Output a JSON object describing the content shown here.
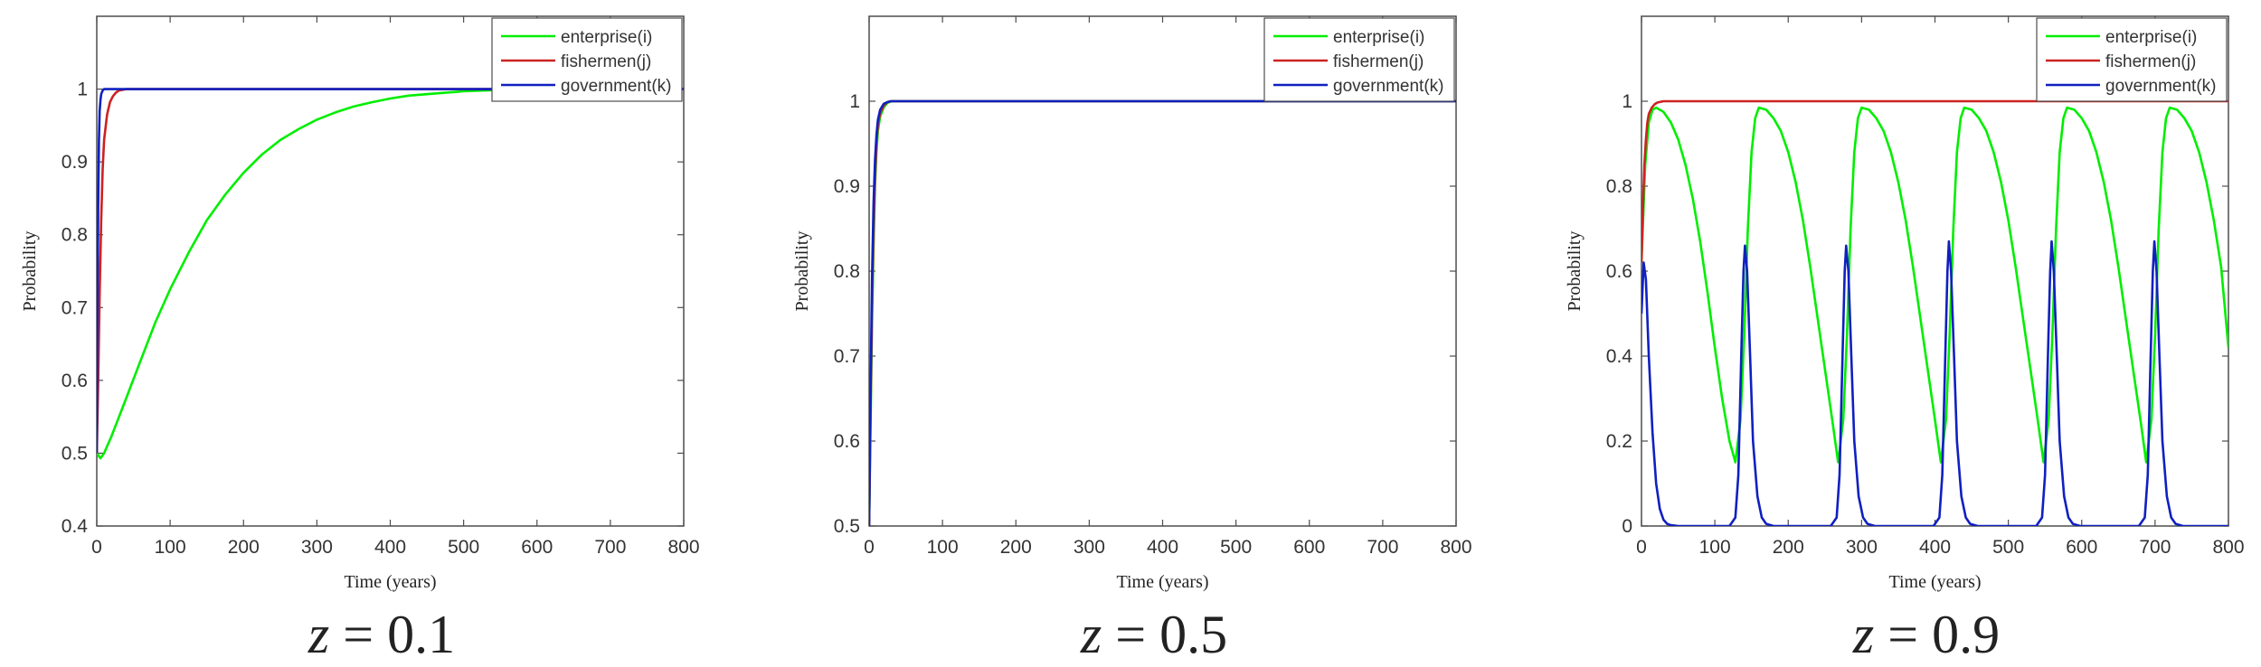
{
  "chart_data": [
    {
      "type": "line",
      "caption": "z = 0.1",
      "xlabel": "Time (years)",
      "ylabel": "Probability",
      "xlim": [
        0,
        800
      ],
      "ylim": [
        0.4,
        1.1
      ],
      "xticks": [
        "0",
        "100",
        "200",
        "300",
        "400",
        "500",
        "600",
        "700",
        "800"
      ],
      "yticks": [
        "0.4",
        "0.5",
        "0.6",
        "0.7",
        "0.8",
        "0.9",
        "1"
      ],
      "legend_position": "top-right",
      "series": [
        {
          "name": "enterprise(i)",
          "color": "#00ee00",
          "x": [
            0,
            5,
            10,
            20,
            40,
            60,
            80,
            100,
            125,
            150,
            175,
            200,
            225,
            250,
            275,
            300,
            325,
            350,
            375,
            400,
            425,
            450,
            475,
            500,
            525,
            550,
            600,
            700,
            800
          ],
          "y": [
            0.5,
            0.493,
            0.5,
            0.523,
            0.575,
            0.628,
            0.68,
            0.725,
            0.775,
            0.82,
            0.855,
            0.885,
            0.91,
            0.93,
            0.945,
            0.958,
            0.968,
            0.976,
            0.982,
            0.987,
            0.991,
            0.993,
            0.995,
            0.997,
            0.998,
            0.999,
            1.0,
            1.0,
            1.0
          ]
        },
        {
          "name": "fishermen(j)",
          "color": "#cc2222",
          "x": [
            0,
            2,
            4,
            6,
            8,
            10,
            14,
            18,
            22,
            26,
            30,
            40,
            60,
            100,
            800
          ],
          "y": [
            0.5,
            0.6,
            0.72,
            0.82,
            0.89,
            0.93,
            0.965,
            0.982,
            0.99,
            0.995,
            0.998,
            1.0,
            1.0,
            1.0,
            1.0
          ]
        },
        {
          "name": "government(k)",
          "color": "#1020c0",
          "x": [
            0,
            1,
            2,
            3,
            4,
            5,
            6,
            8,
            10,
            12,
            20,
            800
          ],
          "y": [
            0.5,
            0.7,
            0.84,
            0.93,
            0.97,
            0.985,
            0.993,
            0.998,
            1.0,
            1.0,
            1.0,
            1.0
          ]
        }
      ]
    },
    {
      "type": "line",
      "caption": "z = 0.5",
      "xlabel": "Time (years)",
      "ylabel": "Probability",
      "xlim": [
        0,
        800
      ],
      "ylim": [
        0.5,
        1.1
      ],
      "xticks": [
        "0",
        "100",
        "200",
        "300",
        "400",
        "500",
        "600",
        "700",
        "800"
      ],
      "yticks": [
        "0.5",
        "0.6",
        "0.7",
        "0.8",
        "0.9",
        "1"
      ],
      "legend_position": "top-right",
      "series": [
        {
          "name": "enterprise(i)",
          "color": "#00ee00",
          "x": [
            0,
            2,
            4,
            6,
            8,
            10,
            12,
            15,
            20,
            25,
            30,
            40,
            800
          ],
          "y": [
            0.5,
            0.62,
            0.74,
            0.83,
            0.9,
            0.94,
            0.965,
            0.982,
            0.993,
            0.998,
            1.0,
            1.0,
            1.0
          ]
        },
        {
          "name": "fishermen(j)",
          "color": "#cc2222",
          "x": [
            0,
            2,
            4,
            6,
            8,
            10,
            12,
            15,
            20,
            25,
            30,
            40,
            800
          ],
          "y": [
            0.5,
            0.64,
            0.76,
            0.85,
            0.91,
            0.95,
            0.972,
            0.986,
            0.995,
            0.999,
            1.0,
            1.0,
            1.0
          ]
        },
        {
          "name": "government(k)",
          "color": "#1020c0",
          "x": [
            0,
            2,
            4,
            6,
            8,
            10,
            12,
            15,
            20,
            25,
            30,
            40,
            800
          ],
          "y": [
            0.5,
            0.66,
            0.79,
            0.88,
            0.93,
            0.96,
            0.978,
            0.99,
            0.997,
            0.999,
            1.0,
            1.0,
            1.0
          ]
        }
      ]
    },
    {
      "type": "line",
      "caption": "z = 0.9",
      "xlabel": "Time (years)",
      "ylabel": "Probability",
      "xlim": [
        0,
        800
      ],
      "ylim": [
        0,
        1.2
      ],
      "xticks": [
        "0",
        "100",
        "200",
        "300",
        "400",
        "500",
        "600",
        "700",
        "800"
      ],
      "yticks": [
        "0",
        "0.2",
        "0.4",
        "0.6",
        "0.8",
        "1"
      ],
      "legend_position": "top-right",
      "series": [
        {
          "name": "enterprise(i)",
          "color": "#00ee00",
          "x": [
            0,
            5,
            10,
            15,
            20,
            30,
            40,
            50,
            60,
            70,
            80,
            90,
            100,
            110,
            120,
            128,
            135,
            140,
            145,
            150,
            155,
            160,
            170,
            180,
            190,
            200,
            210,
            220,
            230,
            240,
            250,
            260,
            268,
            275,
            280,
            285,
            290,
            295,
            300,
            310,
            320,
            330,
            340,
            350,
            360,
            370,
            380,
            390,
            400,
            408,
            415,
            420,
            425,
            430,
            435,
            440,
            450,
            460,
            470,
            480,
            490,
            500,
            510,
            520,
            530,
            540,
            548,
            555,
            560,
            565,
            570,
            575,
            580,
            590,
            600,
            610,
            620,
            630,
            640,
            650,
            660,
            670,
            680,
            688,
            695,
            700,
            705,
            710,
            715,
            720,
            730,
            740,
            750,
            760,
            770,
            780,
            790,
            800
          ],
          "y": [
            0.62,
            0.85,
            0.95,
            0.98,
            0.985,
            0.975,
            0.95,
            0.91,
            0.85,
            0.77,
            0.67,
            0.55,
            0.42,
            0.3,
            0.2,
            0.15,
            0.25,
            0.45,
            0.7,
            0.88,
            0.96,
            0.985,
            0.98,
            0.96,
            0.93,
            0.88,
            0.81,
            0.72,
            0.61,
            0.49,
            0.37,
            0.25,
            0.15,
            0.25,
            0.45,
            0.7,
            0.88,
            0.96,
            0.985,
            0.98,
            0.96,
            0.93,
            0.88,
            0.81,
            0.72,
            0.61,
            0.49,
            0.37,
            0.25,
            0.15,
            0.25,
            0.45,
            0.7,
            0.88,
            0.96,
            0.985,
            0.98,
            0.96,
            0.93,
            0.88,
            0.81,
            0.72,
            0.61,
            0.49,
            0.37,
            0.25,
            0.15,
            0.25,
            0.45,
            0.7,
            0.88,
            0.96,
            0.985,
            0.98,
            0.96,
            0.93,
            0.88,
            0.81,
            0.72,
            0.61,
            0.49,
            0.37,
            0.25,
            0.15,
            0.25,
            0.45,
            0.7,
            0.88,
            0.96,
            0.985,
            0.98,
            0.96,
            0.93,
            0.88,
            0.81,
            0.72,
            0.61,
            0.42
          ]
        },
        {
          "name": "fishermen(j)",
          "color": "#cc2222",
          "x": [
            0,
            2,
            4,
            6,
            8,
            10,
            14,
            18,
            22,
            30,
            40,
            800
          ],
          "y": [
            0.62,
            0.75,
            0.85,
            0.91,
            0.95,
            0.97,
            0.985,
            0.993,
            0.997,
            1.0,
            1.0,
            1.0
          ]
        },
        {
          "name": "government(k)",
          "color": "#1020c0",
          "x": [
            0,
            3,
            6,
            10,
            15,
            20,
            25,
            30,
            35,
            40,
            50,
            60,
            120,
            128,
            132,
            136,
            139,
            141,
            144,
            148,
            152,
            158,
            164,
            170,
            180,
            190,
            258,
            266,
            270,
            274,
            277,
            279,
            282,
            286,
            290,
            296,
            302,
            308,
            318,
            330,
            398,
            406,
            410,
            414,
            417,
            419,
            422,
            426,
            430,
            436,
            442,
            448,
            458,
            470,
            538,
            546,
            550,
            554,
            557,
            559,
            562,
            566,
            570,
            576,
            582,
            588,
            598,
            610,
            678,
            686,
            690,
            694,
            697,
            699,
            702,
            706,
            710,
            716,
            722,
            728,
            738,
            750,
            800
          ],
          "y": [
            0.5,
            0.62,
            0.58,
            0.4,
            0.22,
            0.1,
            0.04,
            0.015,
            0.005,
            0.002,
            0.0,
            0.0,
            0.0,
            0.02,
            0.12,
            0.4,
            0.6,
            0.66,
            0.6,
            0.4,
            0.2,
            0.07,
            0.02,
            0.005,
            0.0,
            0.0,
            0.0,
            0.02,
            0.12,
            0.4,
            0.6,
            0.66,
            0.6,
            0.4,
            0.2,
            0.07,
            0.02,
            0.005,
            0.0,
            0.0,
            0.0,
            0.02,
            0.12,
            0.4,
            0.6,
            0.67,
            0.6,
            0.4,
            0.2,
            0.07,
            0.02,
            0.005,
            0.0,
            0.0,
            0.0,
            0.02,
            0.12,
            0.4,
            0.6,
            0.67,
            0.6,
            0.4,
            0.2,
            0.07,
            0.02,
            0.005,
            0.0,
            0.0,
            0.0,
            0.02,
            0.12,
            0.4,
            0.6,
            0.67,
            0.6,
            0.4,
            0.2,
            0.07,
            0.02,
            0.005,
            0.0,
            0.0,
            0.0
          ]
        }
      ]
    }
  ]
}
